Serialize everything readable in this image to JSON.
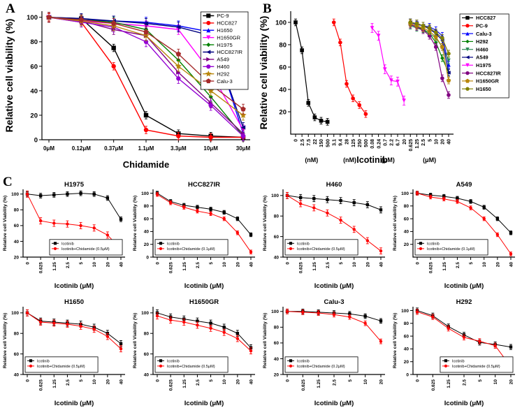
{
  "panels": [
    {
      "label": "A"
    },
    {
      "label": "B"
    },
    {
      "label": "C"
    }
  ],
  "chart_data": [
    {
      "id": "A",
      "size": "A",
      "type": "line",
      "title": "",
      "xlabel": "Chidamide",
      "ylabel": "Relative cell viability (%)",
      "categories": [
        "0μM",
        "0.12μM",
        "0.37μM",
        "1.1μM",
        "3.3μM",
        "10μM",
        "30μM"
      ],
      "ylim": [
        0,
        105
      ],
      "yticks": [
        0,
        20,
        40,
        60,
        80,
        100
      ],
      "xtick_rotate": false,
      "grid": false,
      "legend_pos": "top-right",
      "series": [
        {
          "name": "PC-9",
          "color": "#000000",
          "marker": "square",
          "err": 3,
          "values": [
            100,
            99,
            75,
            20,
            5,
            3,
            2
          ]
        },
        {
          "name": "HCC827",
          "color": "#ff0000",
          "marker": "circle",
          "err": 3,
          "values": [
            100,
            96,
            60,
            8,
            3,
            2,
            2
          ]
        },
        {
          "name": "H1650",
          "color": "#0000ff",
          "marker": "triangle-up",
          "err": 4,
          "values": [
            100,
            98,
            97,
            96,
            93,
            88,
            5
          ]
        },
        {
          "name": "H1650GR",
          "color": "#ff00ff",
          "marker": "triangle-down",
          "err": 4,
          "values": [
            100,
            97,
            95,
            93,
            90,
            55,
            8
          ]
        },
        {
          "name": "H1975",
          "color": "#008000",
          "marker": "diamond",
          "err": 4,
          "values": [
            100,
            98,
            96,
            90,
            65,
            35,
            3
          ]
        },
        {
          "name": "HCC827IR",
          "color": "#000080",
          "marker": "triangle-left",
          "err": 4,
          "values": [
            100,
            99,
            97,
            95,
            92,
            85,
            10
          ]
        },
        {
          "name": "A549",
          "color": "#800080",
          "marker": "triangle-right",
          "err": 4,
          "values": [
            100,
            97,
            90,
            85,
            55,
            30,
            5
          ]
        },
        {
          "name": "H460",
          "color": "#9400d3",
          "marker": "circle",
          "err": 4,
          "values": [
            100,
            96,
            92,
            80,
            50,
            28,
            3
          ]
        },
        {
          "name": "H292",
          "color": "#b8860b",
          "marker": "star",
          "err": 4,
          "values": [
            100,
            97,
            93,
            85,
            60,
            40,
            20
          ]
        },
        {
          "name": "Calu-3",
          "color": "#a52a2a",
          "marker": "pentagon",
          "err": 4,
          "values": [
            100,
            98,
            95,
            88,
            70,
            45,
            25
          ]
        }
      ]
    },
    {
      "id": "B",
      "size": "B",
      "type": "line",
      "title": "",
      "xlabel": "Icotinib",
      "ylabel": "Relative cell viability (%)",
      "categories": [
        "0",
        "2.5",
        "7.5",
        "22",
        "150",
        "500",
        "3.1",
        "9.4",
        "28",
        "125",
        "250",
        "500",
        "0.08",
        "0.24",
        "0.7",
        "2.2",
        "6.7",
        "20",
        "0.625",
        "1.25",
        "2.5",
        "5",
        "10",
        "20",
        "40"
      ],
      "unit_groups": [
        {
          "label": "(nM)",
          "from": 0,
          "to": 5
        },
        {
          "label": "(nM)",
          "from": 6,
          "to": 11
        },
        {
          "label": "(μM)",
          "from": 12,
          "to": 17
        },
        {
          "label": "(μM)",
          "from": 18,
          "to": 24
        }
      ],
      "ylim": [
        0,
        110
      ],
      "yticks": [
        20,
        40,
        60,
        80,
        100
      ],
      "xtick_rotate": true,
      "grid": false,
      "legend_pos": "right-outside",
      "series": [
        {
          "name": "HCC827",
          "color": "#000000",
          "marker": "square",
          "err": 3,
          "start": 0,
          "values": [
            100,
            75,
            28,
            15,
            12,
            11
          ]
        },
        {
          "name": "PC-9",
          "color": "#ff0000",
          "marker": "circle",
          "err": 3,
          "start": 6,
          "values": [
            100,
            82,
            45,
            32,
            26,
            18
          ]
        },
        {
          "name": "Calu-3",
          "color": "#0000ff",
          "marker": "triangle-up",
          "err": 3,
          "start": 18,
          "values": [
            100,
            98,
            97,
            96,
            93,
            88,
            62
          ]
        },
        {
          "name": "H292",
          "color": "#008000",
          "marker": "diamond",
          "err": 3,
          "start": 18,
          "values": [
            98,
            96,
            94,
            90,
            82,
            68,
            55
          ]
        },
        {
          "name": "H460",
          "color": "#2e8b57",
          "marker": "triangle-down",
          "err": 3,
          "start": 18,
          "values": [
            97,
            95,
            93,
            90,
            86,
            78,
            66
          ]
        },
        {
          "name": "A549",
          "color": "#000080",
          "marker": "triangle-left",
          "err": 3,
          "start": 18,
          "values": [
            100,
            99,
            97,
            94,
            90,
            84,
            55
          ]
        },
        {
          "name": "H1975",
          "color": "#ff00ff",
          "marker": "triangle-down",
          "err": 4,
          "start": 12,
          "values": [
            95,
            88,
            58,
            48,
            47,
            30
          ]
        },
        {
          "name": "HCC827IR",
          "color": "#800080",
          "marker": "circle",
          "err": 3,
          "start": 18,
          "values": [
            98,
            96,
            93,
            88,
            78,
            50,
            35
          ]
        },
        {
          "name": "H1650GR",
          "color": "#b8860b",
          "marker": "pentagon",
          "err": 3,
          "start": 18,
          "values": [
            99,
            97,
            95,
            92,
            87,
            78,
            48
          ]
        },
        {
          "name": "H1650",
          "color": "#808000",
          "marker": "circle",
          "err": 3,
          "start": 18,
          "values": [
            100,
            99,
            97,
            95,
            91,
            86,
            72
          ]
        }
      ]
    },
    {
      "id": "C1",
      "size": "C",
      "type": "line",
      "title": "H1975",
      "xlabel": "Icotinib (μM)",
      "ylabel": "Relative cell Viability (%)",
      "categories": [
        "0",
        "0.625",
        "1.25",
        "2.5",
        "5",
        "10",
        "20",
        "40"
      ],
      "ylim": [
        20,
        106
      ],
      "yticks": [
        20,
        40,
        60,
        80,
        100
      ],
      "xtick_rotate": true,
      "grid": false,
      "legend_pos": "bottom-middle",
      "series": [
        {
          "name": "Icotinib",
          "color": "#000000",
          "marker": "square",
          "err": 3,
          "values": [
            100,
            98,
            99,
            100,
            101,
            100,
            95,
            68
          ]
        },
        {
          "name": "Icotinib+Chidamide (0.5μM)",
          "color": "#ff0000",
          "marker": "circle",
          "err": 4,
          "values": [
            100,
            66,
            63,
            62,
            60,
            57,
            48,
            30
          ]
        }
      ]
    },
    {
      "id": "C2",
      "size": "C",
      "type": "line",
      "title": "HCC827IR",
      "xlabel": "Icotinib (μM)",
      "ylabel": "Relative cell Viability (%)",
      "categories": [
        "0",
        "0.625",
        "1.25",
        "2.5",
        "5",
        "10",
        "20",
        "40"
      ],
      "ylim": [
        0,
        106
      ],
      "yticks": [
        0,
        20,
        40,
        60,
        80,
        100
      ],
      "xtick_rotate": true,
      "grid": false,
      "legend_pos": "bottom-left",
      "series": [
        {
          "name": "Icotinib",
          "color": "#000000",
          "marker": "square",
          "err": 3,
          "values": [
            100,
            87,
            81,
            78,
            75,
            70,
            60,
            35
          ]
        },
        {
          "name": "Icotinib+Chidamide (0.1μM)",
          "color": "#ff0000",
          "marker": "circle",
          "err": 3,
          "values": [
            98,
            85,
            78,
            72,
            68,
            60,
            38,
            8
          ]
        }
      ]
    },
    {
      "id": "C3",
      "size": "C",
      "type": "line",
      "title": "H460",
      "xlabel": "Icotinib (μM)",
      "ylabel": "Relative cell Viability (%)",
      "categories": [
        "0",
        "0.625",
        "1.25",
        "2.5",
        "5",
        "10",
        "20",
        "40"
      ],
      "ylim": [
        40,
        106
      ],
      "yticks": [
        40,
        60,
        80,
        100
      ],
      "xtick_rotate": true,
      "grid": false,
      "legend_pos": "bottom-left",
      "series": [
        {
          "name": "Icotinib",
          "color": "#000000",
          "marker": "square",
          "err": 3,
          "values": [
            100,
            98,
            97,
            96,
            95,
            93,
            91,
            86
          ]
        },
        {
          "name": "Icotinib+Chidamide (0.5μM)",
          "color": "#ff0000",
          "marker": "circle",
          "err": 3,
          "values": [
            100,
            92,
            88,
            83,
            76,
            67,
            56,
            46
          ]
        }
      ]
    },
    {
      "id": "C4",
      "size": "C",
      "type": "line",
      "title": "A549",
      "xlabel": "Icotinib (μM)",
      "ylabel": "Relative cell viability (%)",
      "categories": [
        "0",
        "0.625",
        "1.25",
        "2.5",
        "5",
        "10",
        "20",
        "40"
      ],
      "ylim": [
        0,
        106
      ],
      "yticks": [
        20,
        40,
        60,
        80,
        100
      ],
      "xtick_rotate": true,
      "grid": false,
      "legend_pos": "bottom-left",
      "series": [
        {
          "name": "Icotinib",
          "color": "#000000",
          "marker": "square",
          "err": 3,
          "values": [
            100,
            97,
            95,
            92,
            87,
            78,
            60,
            38
          ]
        },
        {
          "name": "Icotinib+Chidamide (0.1μM)",
          "color": "#ff0000",
          "marker": "circle",
          "err": 3,
          "values": [
            100,
            94,
            91,
            87,
            77,
            60,
            35,
            5
          ]
        }
      ]
    },
    {
      "id": "C5",
      "size": "C",
      "type": "line",
      "title": "H1650",
      "xlabel": "Icotinib (μM)",
      "ylabel": "Relative cell Viability (%)",
      "categories": [
        "0",
        "0.625",
        "1.25",
        "2.5",
        "5",
        "10",
        "20",
        "40"
      ],
      "ylim": [
        40,
        106
      ],
      "yticks": [
        40,
        60,
        80,
        100
      ],
      "xtick_rotate": true,
      "grid": false,
      "legend_pos": "bottom-left",
      "series": [
        {
          "name": "Icotinib",
          "color": "#000000",
          "marker": "square",
          "err": 3,
          "values": [
            100,
            92,
            91,
            90,
            89,
            86,
            80,
            70
          ]
        },
        {
          "name": "Icotinib+Chidamide (0.5μM)",
          "color": "#ff0000",
          "marker": "circle",
          "err": 3,
          "values": [
            100,
            91,
            90,
            89,
            87,
            84,
            77,
            65
          ]
        }
      ]
    },
    {
      "id": "C6",
      "size": "C",
      "type": "line",
      "title": "H1650GR",
      "xlabel": "Icotinib (μM)",
      "ylabel": "Relative cell Viability (%)",
      "categories": [
        "0",
        "0.625",
        "1.25",
        "2.5",
        "5",
        "10",
        "20",
        "40"
      ],
      "ylim": [
        40,
        106
      ],
      "yticks": [
        40,
        60,
        80,
        100
      ],
      "xtick_rotate": true,
      "grid": false,
      "legend_pos": "bottom-left",
      "series": [
        {
          "name": "Icotinib",
          "color": "#000000",
          "marker": "square",
          "err": 3,
          "values": [
            100,
            96,
            94,
            92,
            90,
            86,
            80,
            66
          ]
        },
        {
          "name": "Icotinib+Chidamide (0.5μM)",
          "color": "#ff0000",
          "marker": "circle",
          "err": 3,
          "values": [
            97,
            93,
            91,
            88,
            85,
            81,
            75,
            63
          ]
        }
      ]
    },
    {
      "id": "C7",
      "size": "C",
      "type": "line",
      "title": "Calu-3",
      "xlabel": "Icotinib (μM)",
      "ylabel": "Relative cell Viability (%)",
      "categories": [
        "0",
        "0.625",
        "1.25",
        "2.5",
        "5",
        "10",
        "20"
      ],
      "ylim": [
        20,
        106
      ],
      "yticks": [
        20,
        40,
        60,
        80,
        100
      ],
      "xtick_rotate": true,
      "grid": false,
      "legend_pos": "bottom-left",
      "series": [
        {
          "name": "Icotinib",
          "color": "#000000",
          "marker": "square",
          "err": 3,
          "values": [
            100,
            100,
            99,
            98,
            97,
            94,
            88
          ]
        },
        {
          "name": "Icotinib+Chidamide (0.2μM)",
          "color": "#ff0000",
          "marker": "circle",
          "err": 3,
          "values": [
            100,
            99,
            98,
            96,
            93,
            85,
            62
          ]
        }
      ]
    },
    {
      "id": "C8",
      "size": "C",
      "type": "line",
      "title": "H292",
      "xlabel": "Icotinib (μM)",
      "ylabel": "Relative cell Viability (%)",
      "categories": [
        "0",
        "0.625",
        "1.25",
        "2.5",
        "5",
        "10",
        "20"
      ],
      "ylim": [
        0,
        106
      ],
      "yticks": [
        0,
        20,
        40,
        60,
        80,
        100
      ],
      "xtick_rotate": true,
      "grid": false,
      "legend_pos": "bottom-right",
      "series": [
        {
          "name": "Icotinib",
          "color": "#000000",
          "marker": "square",
          "err": 4,
          "values": [
            100,
            92,
            75,
            62,
            50,
            47,
            43
          ]
        },
        {
          "name": "Icotinib+Chidamide (0.5μM)",
          "color": "#ff0000",
          "marker": "circle",
          "err": 4,
          "values": [
            98,
            90,
            72,
            58,
            52,
            45,
            12
          ]
        }
      ]
    }
  ]
}
